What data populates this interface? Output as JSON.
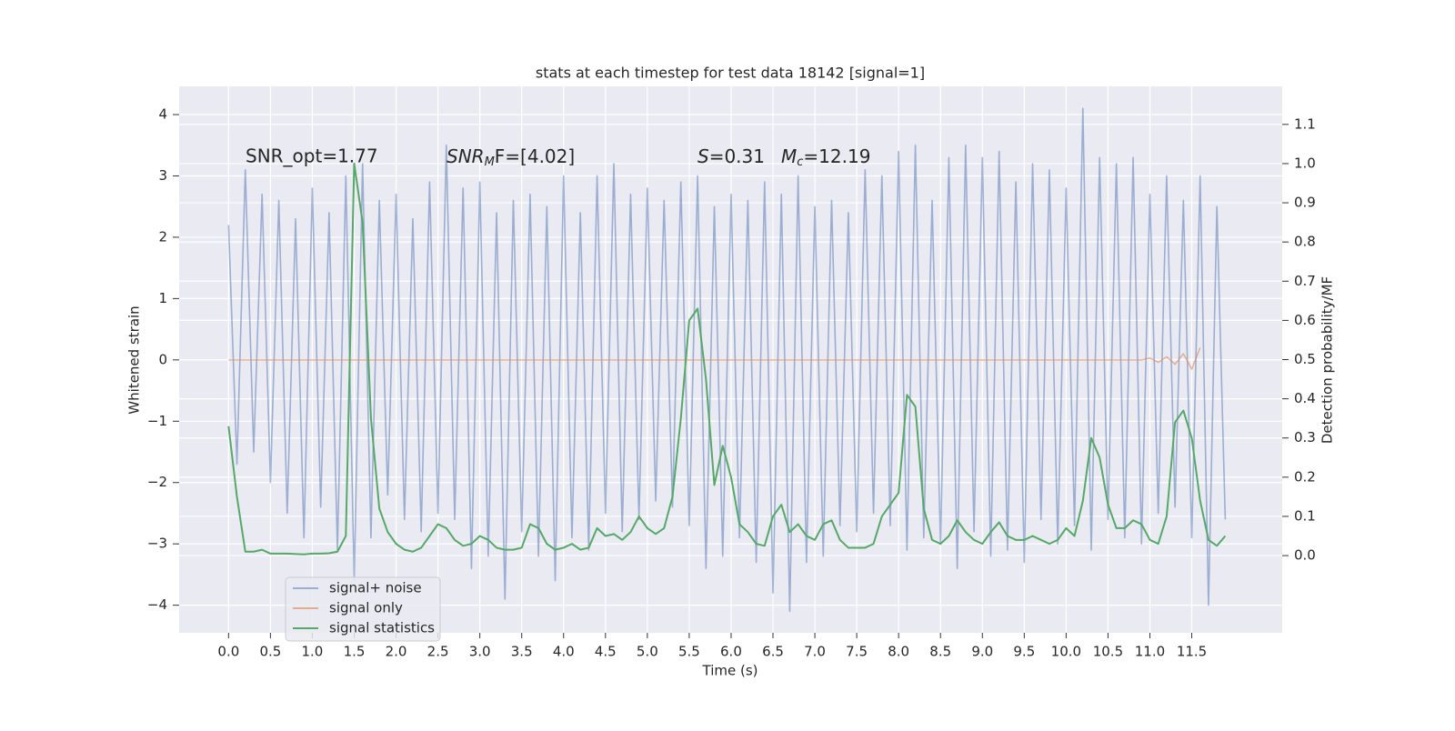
{
  "chart_data": {
    "type": "line",
    "title": "stats at each timestep for test data 18142 [signal=1]",
    "x_label": "Time (s)",
    "y_label": "Whitened strain",
    "y2_label": "Detection probability/MF",
    "annotations": [
      "SNR_opt=1.77",
      [
        "SNR",
        "M",
        "F=[4.02]"
      ],
      [
        "S",
        "=0.31"
      ],
      [
        "M",
        "c",
        "=12.19"
      ]
    ],
    "xlim": [
      -0.59,
      12.58
    ],
    "ylim": [
      -4.45,
      4.46
    ],
    "y2lim": [
      -0.197,
      1.197
    ],
    "xticks": [
      {
        "value": 0,
        "label": "0.0"
      },
      0.5,
      {
        "value": 1,
        "label": "1.0"
      },
      1.5,
      {
        "value": 2,
        "label": "2.0"
      },
      2.5,
      {
        "value": 3,
        "label": "3.0"
      },
      3.5,
      {
        "value": 4,
        "label": "4.0"
      },
      4.5,
      {
        "value": 5,
        "label": "5.0"
      },
      5.5,
      {
        "value": 6,
        "label": "6.0"
      },
      6.5,
      {
        "value": 7,
        "label": "7.0"
      },
      7.5,
      {
        "value": 8,
        "label": "8.0"
      },
      8.5,
      {
        "value": 9,
        "label": "9.0"
      },
      9.5,
      {
        "value": 10,
        "label": "10.0"
      },
      10.5,
      {
        "value": 11,
        "label": "11.0"
      },
      11.5
    ],
    "yticks": [
      {
        "value": -4,
        "label": "−4"
      },
      {
        "value": -3,
        "label": "−3"
      },
      {
        "value": -2,
        "label": "−2"
      },
      {
        "value": -1,
        "label": "−1"
      },
      0,
      1,
      2,
      3,
      4
    ],
    "y2ticks": [
      {
        "value": 0,
        "label": "0.0"
      },
      0.1,
      0.2,
      0.3,
      0.4,
      0.5,
      0.6,
      0.7,
      0.8,
      0.9,
      {
        "value": 1,
        "label": "1.0"
      },
      1.1
    ],
    "grid": true,
    "legend": "lower left",
    "x": [
      0,
      0.1,
      0.2,
      0.3,
      0.4,
      0.5,
      0.6,
      0.7,
      0.8,
      0.9,
      1,
      1.1,
      1.2,
      1.3,
      1.4,
      1.5,
      1.6,
      1.7,
      1.8,
      1.9,
      2,
      2.1,
      2.2,
      2.3,
      2.4,
      2.5,
      2.6,
      2.7,
      2.8,
      2.9,
      3,
      3.1,
      3.2,
      3.3,
      3.4,
      3.5,
      3.6,
      3.7,
      3.8,
      3.9,
      4,
      4.1,
      4.2,
      4.3,
      4.4,
      4.5,
      4.6,
      4.7,
      4.8,
      4.9,
      5,
      5.1,
      5.2,
      5.3,
      5.4,
      5.5,
      5.6,
      5.7,
      5.8,
      5.9,
      6,
      6.1,
      6.2,
      6.3,
      6.4,
      6.5,
      6.6,
      6.7,
      6.8,
      6.9,
      7,
      7.1,
      7.2,
      7.3,
      7.4,
      7.5,
      7.6,
      7.7,
      7.8,
      7.9,
      8,
      8.1,
      8.2,
      8.3,
      8.4,
      8.5,
      8.6,
      8.7,
      8.8,
      8.9,
      9,
      9.1,
      9.2,
      9.3,
      9.4,
      9.5,
      9.6,
      9.7,
      9.8,
      9.9,
      10,
      10.1,
      10.2,
      10.3,
      10.4,
      10.5,
      10.6,
      10.7,
      10.8,
      10.9,
      11,
      11.1,
      11.2,
      11.3,
      11.4,
      11.5,
      11.6,
      11.7,
      11.8,
      11.9
    ],
    "series": [
      {
        "name": "signal+ noise",
        "color": "#4c72b0",
        "values": [
          2.2,
          -1.7,
          3.1,
          -1.5,
          2.7,
          -2.0,
          2.6,
          -2.5,
          2.3,
          -2.9,
          2.8,
          -2.4,
          2.4,
          -3.1,
          3.0,
          -3.6,
          3.2,
          -2.9,
          2.6,
          -2.2,
          2.7,
          -2.6,
          2.3,
          -2.8,
          2.9,
          -2.5,
          3.5,
          -2.6,
          2.8,
          -3.4,
          2.9,
          -3.2,
          2.4,
          -3.9,
          2.6,
          -2.8,
          2.7,
          -3.2,
          2.5,
          -3.6,
          3.0,
          -2.9,
          2.4,
          -3.1,
          3.0,
          -2.5,
          3.2,
          -2.8,
          2.7,
          -2.6,
          2.8,
          -2.3,
          2.6,
          -2.4,
          2.9,
          -2.7,
          3.0,
          -3.4,
          2.5,
          -3.2,
          2.7,
          -2.9,
          2.6,
          -3.3,
          2.9,
          -3.8,
          2.7,
          -4.1,
          3.0,
          -3.3,
          2.5,
          -3.2,
          2.6,
          -2.7,
          2.4,
          -2.8,
          3.1,
          -2.5,
          3.0,
          -2.7,
          3.4,
          -3.1,
          3.5,
          -2.9,
          2.6,
          -3.0,
          3.3,
          -3.4,
          3.5,
          -2.8,
          3.3,
          -3.2,
          3.4,
          -3.1,
          2.9,
          -3.3,
          3.2,
          -2.6,
          3.1,
          -3.0,
          2.8,
          -2.7,
          4.1,
          -3.1,
          3.3,
          -2.6,
          3.2,
          -2.9,
          3.3,
          -3.0,
          2.7,
          -2.5,
          3.0,
          -2.4,
          2.6,
          -2.9,
          3.0,
          -4.0,
          2.5,
          -2.6
        ]
      },
      {
        "name": "signal only",
        "color": "#dd8452",
        "values": [
          0,
          0,
          0,
          0,
          0,
          0,
          0,
          0,
          0,
          0,
          0,
          0,
          0,
          0,
          0,
          0,
          0,
          0,
          0,
          0,
          0,
          0,
          0,
          0,
          0,
          0,
          0,
          0,
          0,
          0,
          0,
          0,
          0,
          0,
          0,
          0,
          0,
          0,
          0,
          0,
          0,
          0,
          0,
          0,
          0,
          0,
          0,
          0,
          0,
          0,
          0,
          0,
          0,
          0,
          0,
          0,
          0,
          0,
          0,
          0,
          0,
          0,
          0,
          0,
          0,
          0,
          0,
          0,
          0,
          0,
          0,
          0,
          0,
          0,
          0,
          0,
          0,
          0,
          0,
          0,
          0,
          0,
          0,
          0,
          0,
          0,
          0,
          0,
          0,
          0,
          0,
          0,
          0,
          0,
          0,
          0,
          0,
          0,
          0,
          0,
          0,
          0,
          0,
          0,
          0,
          0,
          0,
          0,
          0,
          0,
          0.03,
          -0.04,
          0.05,
          -0.07,
          0.1,
          -0.15,
          0.2,
          null,
          null,
          null
        ]
      },
      {
        "name": "signal statistics",
        "color": "#55a868",
        "axis": "y2",
        "values": [
          0.33,
          0.15,
          0.01,
          0.01,
          0.015,
          0.005,
          0.005,
          0.005,
          0.004,
          0.003,
          0.005,
          0.005,
          0.006,
          0.01,
          0.05,
          1.0,
          0.85,
          0.35,
          0.12,
          0.06,
          0.03,
          0.015,
          0.01,
          0.02,
          0.05,
          0.08,
          0.07,
          0.04,
          0.025,
          0.03,
          0.05,
          0.04,
          0.02,
          0.015,
          0.015,
          0.02,
          0.08,
          0.07,
          0.03,
          0.015,
          0.02,
          0.03,
          0.015,
          0.02,
          0.07,
          0.05,
          0.055,
          0.04,
          0.06,
          0.1,
          0.07,
          0.055,
          0.07,
          0.15,
          0.35,
          0.6,
          0.63,
          0.45,
          0.18,
          0.28,
          0.2,
          0.08,
          0.06,
          0.03,
          0.025,
          0.1,
          0.13,
          0.06,
          0.08,
          0.05,
          0.04,
          0.08,
          0.09,
          0.04,
          0.02,
          0.02,
          0.02,
          0.03,
          0.1,
          0.13,
          0.16,
          0.41,
          0.38,
          0.12,
          0.04,
          0.03,
          0.05,
          0.09,
          0.06,
          0.04,
          0.03,
          0.06,
          0.085,
          0.05,
          0.04,
          0.04,
          0.05,
          0.04,
          0.03,
          0.04,
          0.07,
          0.05,
          0.14,
          0.3,
          0.25,
          0.13,
          0.07,
          0.07,
          0.09,
          0.08,
          0.04,
          0.03,
          0.1,
          0.34,
          0.37,
          0.3,
          0.14,
          0.04,
          0.025,
          0.05
        ]
      }
    ]
  }
}
